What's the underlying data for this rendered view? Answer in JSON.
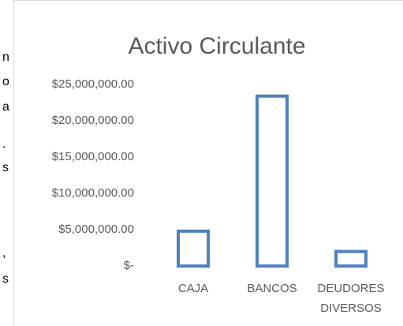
{
  "document_fragments": [
    "n",
    "o",
    "a",
    ".",
    "s",
    ",",
    "s"
  ],
  "chart_data": {
    "type": "bar",
    "title": "Activo Circulante",
    "categories": [
      "CAJA",
      "BANCOS",
      "DEUDORES DIVERSOS"
    ],
    "values": [
      4800000,
      23400000,
      2000000
    ],
    "color": "#4f81bd",
    "ylim": [
      0,
      25000000
    ],
    "yticks": [
      {
        "value": 0,
        "label": "$-"
      },
      {
        "value": 5000000,
        "label": "$5,000,000.00"
      },
      {
        "value": 10000000,
        "label": "$10,000,000.00"
      },
      {
        "value": 15000000,
        "label": "$15,000,000.00"
      },
      {
        "value": 20000000,
        "label": "$20,000,000.00"
      },
      {
        "value": 25000000,
        "label": "$25,000,000.00"
      }
    ],
    "grid": false
  }
}
